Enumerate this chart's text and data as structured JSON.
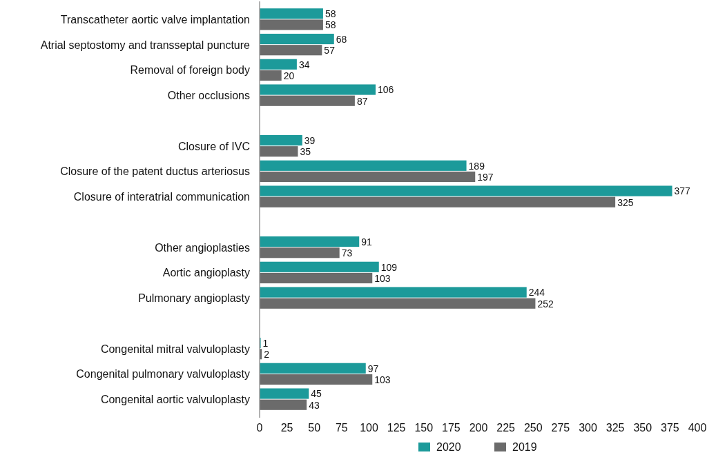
{
  "chart_data": {
    "type": "bar",
    "orientation": "horizontal",
    "categories": [
      "Transcatheter aortic valve implantation",
      "Atrial septostomy and transseptal puncture",
      "Removal of foreign body",
      "Other occlusions",
      null,
      "Closure of IVC",
      "Closure of the patent ductus arteriosus",
      "Closure of interatrial communication",
      null,
      "Other angioplasties",
      "Aortic angioplasty",
      "Pulmonary angioplasty",
      null,
      "Congenital mitral valvuloplasty",
      "Congenital pulmonary valvuloplasty",
      "Congenital aortic valvuloplasty"
    ],
    "series": [
      {
        "name": "2020",
        "color": "#1c9a9a",
        "values": [
          58,
          68,
          34,
          106,
          null,
          39,
          189,
          377,
          null,
          91,
          109,
          244,
          null,
          1,
          97,
          45
        ]
      },
      {
        "name": "2019",
        "color": "#6b6b6b",
        "values": [
          58,
          57,
          20,
          87,
          null,
          35,
          197,
          325,
          null,
          73,
          103,
          252,
          null,
          2,
          103,
          43
        ]
      }
    ],
    "xlim": [
      0,
      400
    ],
    "xticks": [
      0,
      25,
      50,
      75,
      100,
      125,
      150,
      175,
      200,
      225,
      250,
      275,
      300,
      325,
      350,
      375,
      400
    ],
    "data_labels": true,
    "legend": "bottom",
    "grid": false
  }
}
